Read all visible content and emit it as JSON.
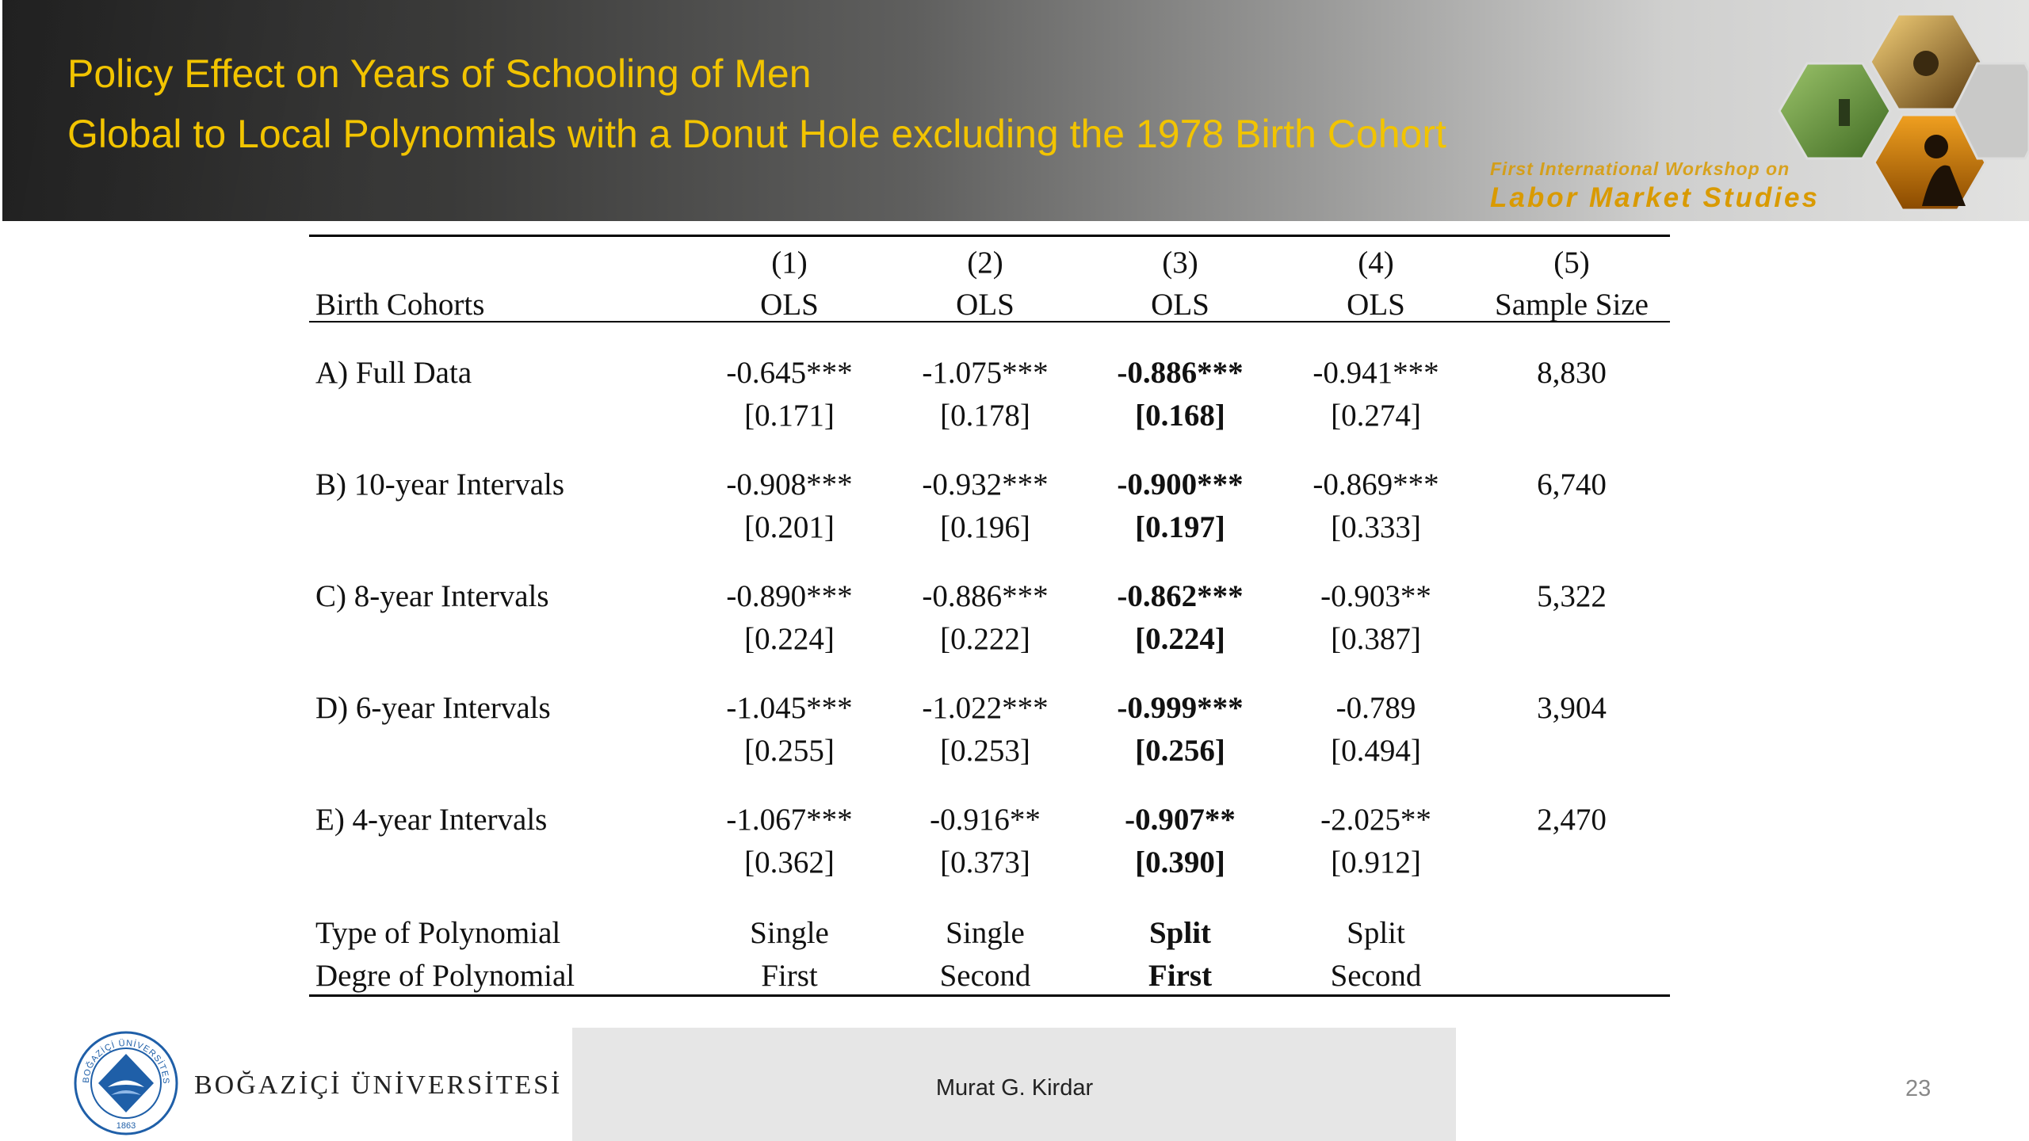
{
  "slide": {
    "title_line1": "Policy Effect on Years of Schooling of Men",
    "title_line2": "Global to Local Polynomials with a Donut Hole excluding the 1978 Birth Cohort",
    "workshop_line1": "First International Workshop on",
    "workshop_line2": "Labor Market Studies",
    "page_number": "23"
  },
  "table": {
    "header_row1": [
      "(1)",
      "(2)",
      "(3)",
      "(4)",
      "(5)"
    ],
    "header_row2": [
      "Birth Cohorts",
      "OLS",
      "OLS",
      "OLS",
      "OLS",
      "Sample Size"
    ],
    "rows": [
      {
        "label": "A) Full Data",
        "coef": [
          "-0.645***",
          "-1.075***",
          "-0.886***",
          "-0.941***"
        ],
        "se": [
          "[0.171]",
          "[0.178]",
          "[0.168]",
          "[0.274]"
        ],
        "n": "8,830"
      },
      {
        "label": "B) 10-year Intervals",
        "coef": [
          "-0.908***",
          "-0.932***",
          "-0.900***",
          "-0.869***"
        ],
        "se": [
          "[0.201]",
          "[0.196]",
          "[0.197]",
          "[0.333]"
        ],
        "n": "6,740"
      },
      {
        "label": "C) 8-year Intervals",
        "coef": [
          "-0.890***",
          "-0.886***",
          "-0.862***",
          "-0.903**"
        ],
        "se": [
          "[0.224]",
          "[0.222]",
          "[0.224]",
          "[0.387]"
        ],
        "n": "5,322"
      },
      {
        "label": "D) 6-year Intervals",
        "coef": [
          "-1.045***",
          "-1.022***",
          "-0.999***",
          "-0.789"
        ],
        "se": [
          "[0.255]",
          "[0.253]",
          "[0.256]",
          "[0.494]"
        ],
        "n": "3,904"
      },
      {
        "label": "E) 4-year Intervals",
        "coef": [
          "-1.067***",
          "-0.916**",
          "-0.907**",
          "-2.025**"
        ],
        "se": [
          "[0.362]",
          "[0.373]",
          "[0.390]",
          "[0.912]"
        ],
        "n": "2,470"
      }
    ],
    "type_row": {
      "label": "Type of Polynomial",
      "values": [
        "Single",
        "Single",
        "Split",
        "Split"
      ]
    },
    "degree_row": {
      "label": "Degre of Polynomial",
      "values": [
        "First",
        "Second",
        "First",
        "Second"
      ]
    }
  },
  "footer": {
    "author": "Murat G. Kirdar",
    "university": "BOĞAZİÇİ ÜNİVERSİTESİ",
    "seal_text": "BOĞAZİÇİ ÜNİVERSİTESİ",
    "seal_year": "1863"
  },
  "icons": {
    "workshop_logo": "hexagon-photo-collage-icon",
    "university_logo": "university-seal-icon"
  },
  "colors": {
    "title": "#f2c400",
    "workshop": "#d99a00",
    "seal": "#1f5fa8"
  }
}
